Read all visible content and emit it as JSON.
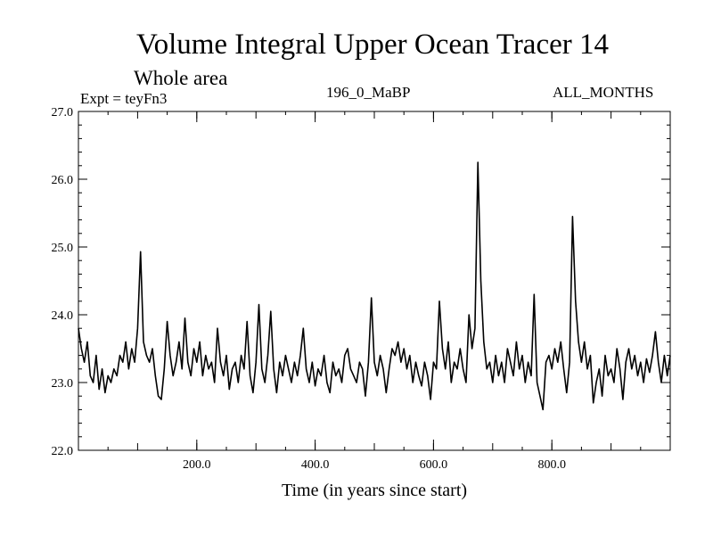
{
  "chart_data": {
    "type": "line",
    "title": "Volume Integral Upper Ocean Tracer 14",
    "subtitle": "Whole area",
    "annotations": {
      "experiment": "Expt = teyFn3",
      "run": "196_0_MaBP",
      "months": "ALL_MONTHS"
    },
    "xlabel": "Time (in years since start)",
    "ylabel": "",
    "xlim": [
      0,
      1000
    ],
    "ylim": [
      22.0,
      27.0
    ],
    "x_ticks": [
      200,
      400,
      600,
      800
    ],
    "x_tick_labels": [
      "200.0",
      "400.0",
      "600.0",
      "800.0"
    ],
    "y_ticks": [
      22,
      23,
      24,
      25,
      26,
      27
    ],
    "y_tick_labels": [
      "22.0",
      "23.0",
      "24.0",
      "25.0",
      "26.0",
      "27.0"
    ],
    "grid": false,
    "series": [
      {
        "name": "Tracer 14",
        "color": "#000000",
        "points": [
          [
            0,
            23.8
          ],
          [
            5,
            23.5
          ],
          [
            10,
            23.3
          ],
          [
            15,
            23.6
          ],
          [
            20,
            23.1
          ],
          [
            25,
            23.0
          ],
          [
            30,
            23.4
          ],
          [
            35,
            22.9
          ],
          [
            40,
            23.2
          ],
          [
            45,
            22.85
          ],
          [
            50,
            23.1
          ],
          [
            55,
            23.0
          ],
          [
            60,
            23.2
          ],
          [
            65,
            23.1
          ],
          [
            70,
            23.4
          ],
          [
            75,
            23.3
          ],
          [
            80,
            23.6
          ],
          [
            85,
            23.2
          ],
          [
            90,
            23.5
          ],
          [
            95,
            23.3
          ],
          [
            100,
            23.8
          ],
          [
            105,
            24.93
          ],
          [
            110,
            23.6
          ],
          [
            115,
            23.4
          ],
          [
            120,
            23.3
          ],
          [
            125,
            23.5
          ],
          [
            130,
            23.1
          ],
          [
            135,
            22.8
          ],
          [
            140,
            22.75
          ],
          [
            145,
            23.2
          ],
          [
            150,
            23.9
          ],
          [
            155,
            23.4
          ],
          [
            160,
            23.1
          ],
          [
            165,
            23.3
          ],
          [
            170,
            23.6
          ],
          [
            175,
            23.2
          ],
          [
            180,
            23.95
          ],
          [
            185,
            23.3
          ],
          [
            190,
            23.1
          ],
          [
            195,
            23.5
          ],
          [
            200,
            23.3
          ],
          [
            205,
            23.6
          ],
          [
            210,
            23.1
          ],
          [
            215,
            23.4
          ],
          [
            220,
            23.2
          ],
          [
            225,
            23.3
          ],
          [
            230,
            23.0
          ],
          [
            235,
            23.8
          ],
          [
            240,
            23.3
          ],
          [
            245,
            23.1
          ],
          [
            250,
            23.4
          ],
          [
            255,
            22.9
          ],
          [
            260,
            23.2
          ],
          [
            265,
            23.3
          ],
          [
            270,
            23.0
          ],
          [
            275,
            23.4
          ],
          [
            280,
            23.2
          ],
          [
            285,
            23.9
          ],
          [
            290,
            23.1
          ],
          [
            295,
            22.85
          ],
          [
            300,
            23.3
          ],
          [
            305,
            24.15
          ],
          [
            310,
            23.2
          ],
          [
            315,
            23.0
          ],
          [
            320,
            23.4
          ],
          [
            325,
            24.05
          ],
          [
            330,
            23.2
          ],
          [
            335,
            22.85
          ],
          [
            340,
            23.3
          ],
          [
            345,
            23.1
          ],
          [
            350,
            23.4
          ],
          [
            355,
            23.2
          ],
          [
            360,
            23.0
          ],
          [
            365,
            23.3
          ],
          [
            370,
            23.1
          ],
          [
            375,
            23.4
          ],
          [
            380,
            23.8
          ],
          [
            385,
            23.2
          ],
          [
            390,
            23.0
          ],
          [
            395,
            23.3
          ],
          [
            400,
            22.95
          ],
          [
            405,
            23.2
          ],
          [
            410,
            23.1
          ],
          [
            415,
            23.4
          ],
          [
            420,
            23.0
          ],
          [
            425,
            22.85
          ],
          [
            430,
            23.3
          ],
          [
            435,
            23.1
          ],
          [
            440,
            23.2
          ],
          [
            445,
            23.0
          ],
          [
            450,
            23.4
          ],
          [
            455,
            23.5
          ],
          [
            460,
            23.2
          ],
          [
            465,
            23.1
          ],
          [
            470,
            23.0
          ],
          [
            475,
            23.3
          ],
          [
            480,
            23.2
          ],
          [
            485,
            22.8
          ],
          [
            490,
            23.3
          ],
          [
            495,
            24.25
          ],
          [
            500,
            23.3
          ],
          [
            505,
            23.1
          ],
          [
            510,
            23.4
          ],
          [
            515,
            23.2
          ],
          [
            520,
            22.85
          ],
          [
            525,
            23.2
          ],
          [
            530,
            23.5
          ],
          [
            535,
            23.4
          ],
          [
            540,
            23.6
          ],
          [
            545,
            23.3
          ],
          [
            550,
            23.5
          ],
          [
            555,
            23.2
          ],
          [
            560,
            23.4
          ],
          [
            565,
            23.0
          ],
          [
            570,
            23.3
          ],
          [
            575,
            23.1
          ],
          [
            580,
            22.95
          ],
          [
            585,
            23.3
          ],
          [
            590,
            23.1
          ],
          [
            595,
            22.75
          ],
          [
            600,
            23.3
          ],
          [
            605,
            23.2
          ],
          [
            610,
            24.2
          ],
          [
            615,
            23.5
          ],
          [
            620,
            23.2
          ],
          [
            625,
            23.6
          ],
          [
            630,
            23.0
          ],
          [
            635,
            23.3
          ],
          [
            640,
            23.2
          ],
          [
            645,
            23.5
          ],
          [
            650,
            23.2
          ],
          [
            655,
            23.0
          ],
          [
            660,
            24.0
          ],
          [
            665,
            23.5
          ],
          [
            670,
            23.8
          ],
          [
            675,
            26.25
          ],
          [
            680,
            24.5
          ],
          [
            685,
            23.6
          ],
          [
            690,
            23.2
          ],
          [
            695,
            23.3
          ],
          [
            700,
            23.0
          ],
          [
            705,
            23.4
          ],
          [
            710,
            23.1
          ],
          [
            715,
            23.3
          ],
          [
            720,
            23.0
          ],
          [
            725,
            23.5
          ],
          [
            730,
            23.3
          ],
          [
            735,
            23.1
          ],
          [
            740,
            23.6
          ],
          [
            745,
            23.2
          ],
          [
            750,
            23.4
          ],
          [
            755,
            23.0
          ],
          [
            760,
            23.3
          ],
          [
            765,
            23.1
          ],
          [
            770,
            24.3
          ],
          [
            775,
            23.0
          ],
          [
            780,
            22.8
          ],
          [
            785,
            22.6
          ],
          [
            790,
            23.3
          ],
          [
            795,
            23.4
          ],
          [
            800,
            23.2
          ],
          [
            805,
            23.5
          ],
          [
            810,
            23.3
          ],
          [
            815,
            23.6
          ],
          [
            820,
            23.2
          ],
          [
            825,
            22.85
          ],
          [
            830,
            23.3
          ],
          [
            835,
            25.45
          ],
          [
            840,
            24.2
          ],
          [
            845,
            23.6
          ],
          [
            850,
            23.3
          ],
          [
            855,
            23.6
          ],
          [
            860,
            23.2
          ],
          [
            865,
            23.4
          ],
          [
            870,
            22.7
          ],
          [
            875,
            23.0
          ],
          [
            880,
            23.2
          ],
          [
            885,
            22.8
          ],
          [
            890,
            23.4
          ],
          [
            895,
            23.1
          ],
          [
            900,
            23.2
          ],
          [
            905,
            23.0
          ],
          [
            910,
            23.5
          ],
          [
            915,
            23.2
          ],
          [
            920,
            22.75
          ],
          [
            925,
            23.3
          ],
          [
            930,
            23.5
          ],
          [
            935,
            23.2
          ],
          [
            940,
            23.4
          ],
          [
            945,
            23.1
          ],
          [
            950,
            23.3
          ],
          [
            955,
            23.0
          ],
          [
            960,
            23.35
          ],
          [
            965,
            23.15
          ],
          [
            970,
            23.4
          ],
          [
            975,
            23.75
          ],
          [
            980,
            23.3
          ],
          [
            985,
            23.0
          ],
          [
            990,
            23.4
          ],
          [
            995,
            23.1
          ],
          [
            1000,
            23.4
          ]
        ]
      }
    ]
  }
}
